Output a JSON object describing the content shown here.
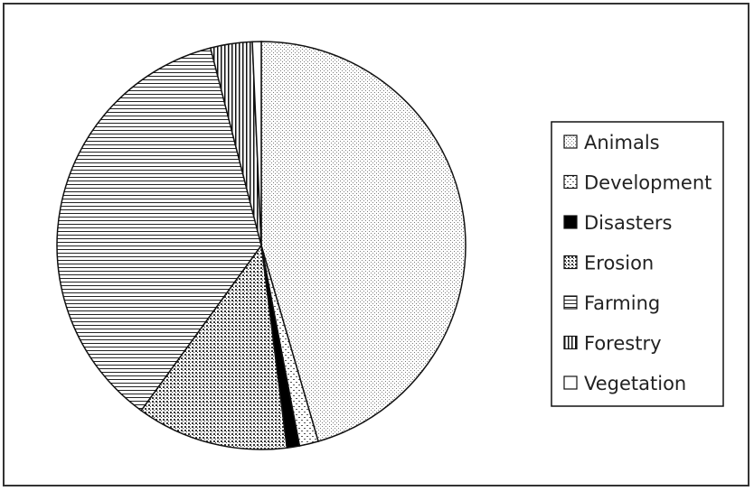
{
  "chart_data": {
    "type": "pie",
    "title": "",
    "categories": [
      "Animals",
      "Development",
      "Disasters",
      "Erosion",
      "Farming",
      "Forestry",
      "Vegetation"
    ],
    "values": [
      45.5,
      1.5,
      1.0,
      12.0,
      36.0,
      3.3,
      0.7
    ],
    "start_angle_deg": 0,
    "direction": "clockwise",
    "legend_position": "right",
    "patterns": [
      "dots-fine",
      "dots-dashed",
      "solid-black",
      "dots-dense",
      "horizontal-lines",
      "vertical-lines",
      "blank"
    ]
  }
}
